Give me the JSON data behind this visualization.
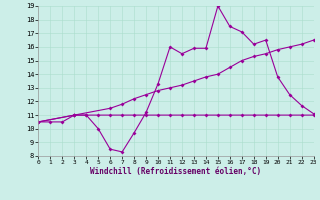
{
  "xlabel": "Windchill (Refroidissement éolien,°C)",
  "bg_color": "#cceee8",
  "line_color": "#990099",
  "ylim": [
    8,
    19
  ],
  "xlim": [
    0,
    23
  ],
  "yticks": [
    8,
    9,
    10,
    11,
    12,
    13,
    14,
    15,
    16,
    17,
    18,
    19
  ],
  "xticks": [
    0,
    1,
    2,
    3,
    4,
    5,
    6,
    7,
    8,
    9,
    10,
    11,
    12,
    13,
    14,
    15,
    16,
    17,
    18,
    19,
    20,
    21,
    22,
    23
  ],
  "line1_x": [
    0,
    1,
    2,
    3,
    4,
    5,
    6,
    7,
    8,
    9,
    10,
    11,
    12,
    13,
    14,
    15,
    16,
    17,
    18,
    19,
    20,
    21,
    22,
    23
  ],
  "line1_y": [
    10.5,
    10.5,
    10.5,
    11.0,
    11.0,
    11.0,
    11.0,
    11.0,
    11.0,
    11.0,
    11.0,
    11.0,
    11.0,
    11.0,
    11.0,
    11.0,
    11.0,
    11.0,
    11.0,
    11.0,
    11.0,
    11.0,
    11.0,
    11.0
  ],
  "line2_x": [
    0,
    3,
    6,
    7,
    8,
    9,
    10,
    11,
    12,
    13,
    14,
    15,
    16,
    17,
    18,
    19,
    20,
    21,
    22,
    23
  ],
  "line2_y": [
    10.5,
    11.0,
    11.5,
    11.8,
    12.2,
    12.5,
    12.8,
    13.0,
    13.2,
    13.5,
    13.8,
    14.0,
    14.5,
    15.0,
    15.3,
    15.5,
    15.8,
    16.0,
    16.2,
    16.5
  ],
  "line3_x": [
    0,
    3,
    4,
    5,
    6,
    7,
    8,
    9,
    10,
    11,
    12,
    13,
    14,
    15,
    16,
    17,
    18,
    19,
    20,
    21,
    22,
    23
  ],
  "line3_y": [
    10.5,
    11.0,
    11.0,
    10.0,
    8.5,
    8.3,
    9.7,
    11.2,
    13.3,
    16.0,
    15.5,
    15.9,
    15.9,
    19.0,
    17.5,
    17.1,
    16.2,
    16.5,
    13.8,
    12.5,
    11.7,
    11.1
  ]
}
